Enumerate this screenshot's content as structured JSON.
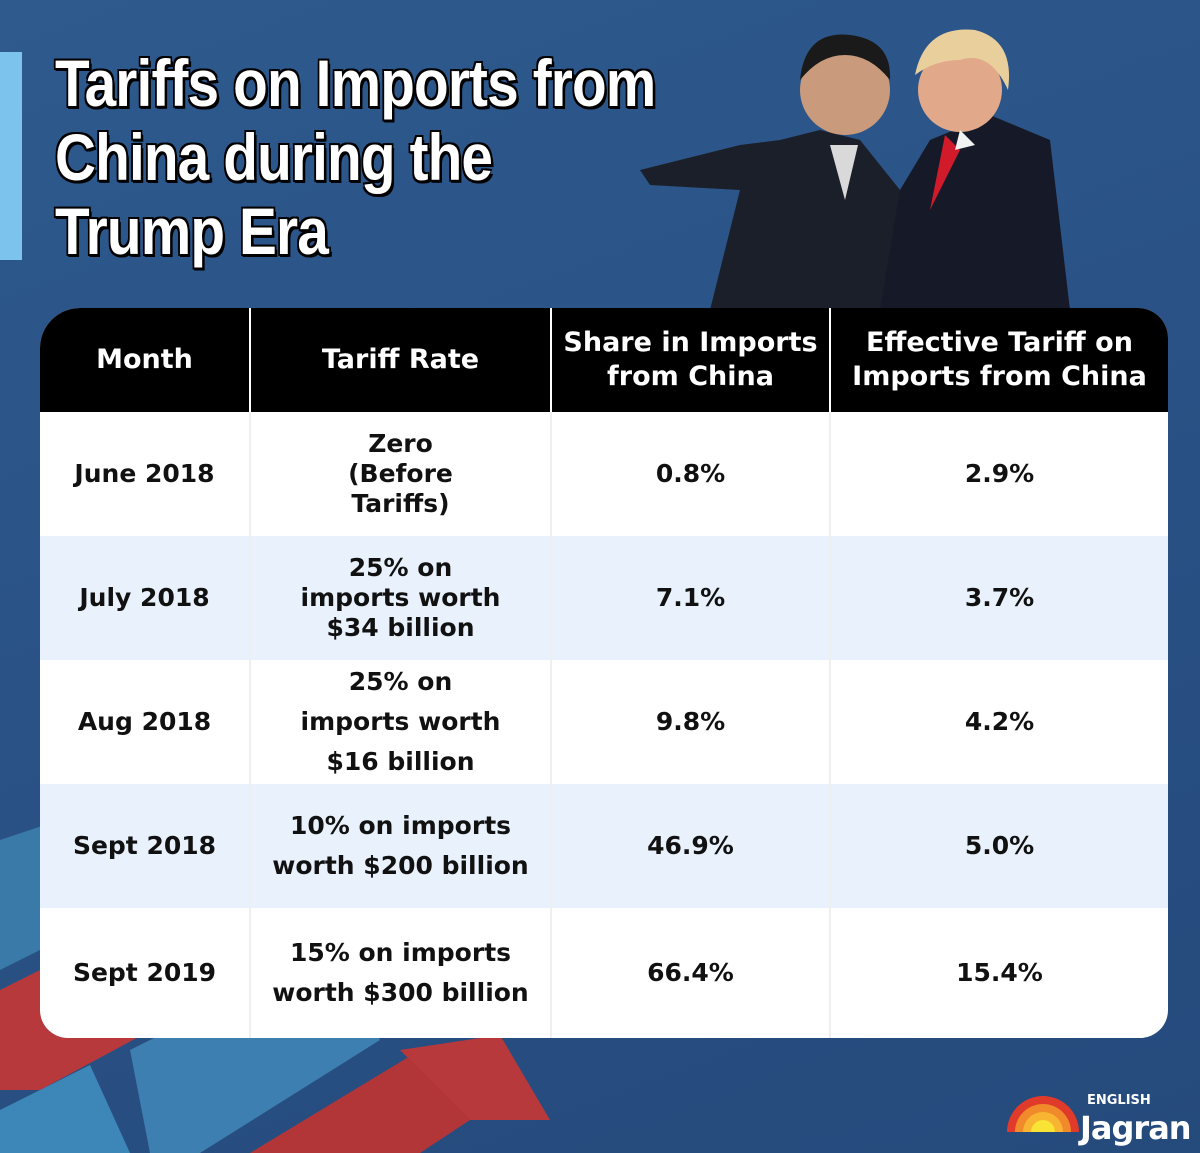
{
  "title_lines": [
    "Tariffs on Imports from",
    "China during the",
    "Trump Era"
  ],
  "table": {
    "headers": [
      "Month",
      "Tariff Rate",
      "Share in Imports from China",
      "Effective Tariff on Imports from China"
    ],
    "rows": [
      {
        "month": "June 2018",
        "rate": "Zero (Before Tariffs)",
        "share": "0.8%",
        "effective": "2.9%"
      },
      {
        "month": "July 2018",
        "rate": "25% on imports worth $34 billion",
        "share": "7.1%",
        "effective": "3.7%"
      },
      {
        "month": "Aug 2018",
        "rate": "25% on imports worth $16 billion",
        "share": "9.8%",
        "effective": "4.2%"
      },
      {
        "month": "Sept 2018",
        "rate": "10% on imports worth $200 billion",
        "share": "46.9%",
        "effective": "5.0%"
      },
      {
        "month": "Sept 2019",
        "rate": "15% on imports worth $300 billion",
        "share": "66.4%",
        "effective": "15.4%"
      }
    ]
  },
  "logo": {
    "top": "ENGLISH",
    "name": "Jagran"
  },
  "colors": {
    "background": "#2a5286",
    "header": "#000000",
    "alt_row": "#e8f1fc",
    "accent": "#7cc3ee"
  }
}
